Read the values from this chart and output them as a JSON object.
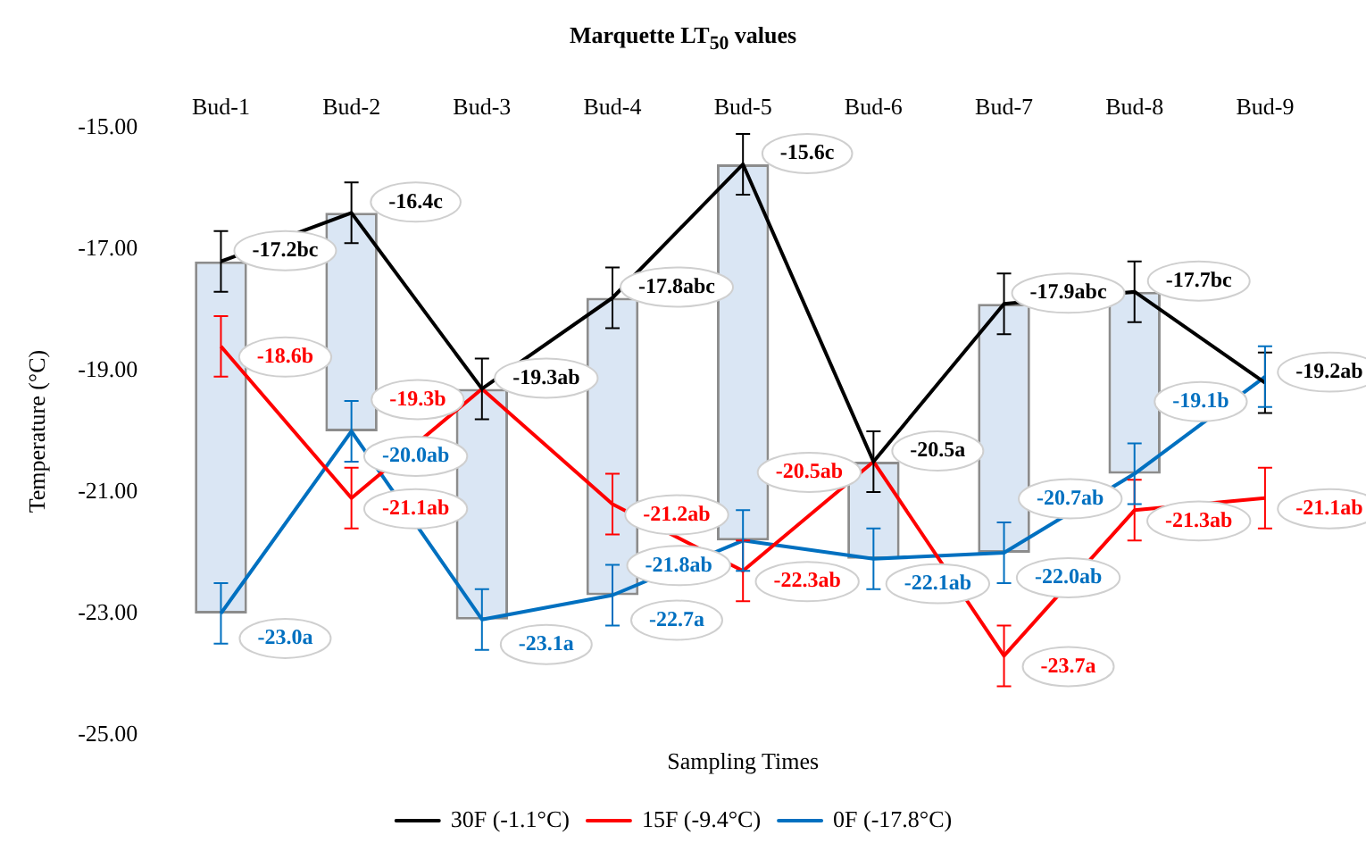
{
  "chart_data": {
    "type": "line",
    "title": "Marquette LT$_{50}$ values",
    "xlabel": "Sampling Times",
    "ylabel": "Temperature (°C)",
    "categories": [
      "Bud-1",
      "Bud-2",
      "Bud-3",
      "Bud-4",
      "Bud-5",
      "Bud-6",
      "Bud-7",
      "Bud-8",
      "Bud-9"
    ],
    "ylim": [
      -25,
      -15
    ],
    "yticks": [
      {
        "value": -15,
        "label": "-15.00"
      },
      {
        "value": -17,
        "label": "-17.00"
      },
      {
        "value": -19,
        "label": "-19.00"
      },
      {
        "value": -21,
        "label": "-21.00"
      },
      {
        "value": -23,
        "label": "-23.00"
      },
      {
        "value": -25,
        "label": "-25.00"
      }
    ],
    "grid": false,
    "legend": "bottom",
    "marker": "none",
    "line_style": "solid",
    "series": [
      {
        "type": "bar",
        "color": "#dae6f4",
        "base": [
          -23.0,
          -20.0,
          -23.1,
          -22.7,
          -21.8,
          -22.1,
          -22.0,
          -20.7,
          null
        ],
        "values": [
          5.8,
          3.6,
          3.8,
          4.9,
          6.2,
          1.6,
          4.1,
          3.0,
          null
        ]
      },
      {
        "name": "30F (-1.1°C)",
        "color": "#000000",
        "values": [
          -17.2,
          -16.4,
          -19.3,
          -17.8,
          -15.6,
          -20.5,
          -17.9,
          -17.7,
          -19.2
        ],
        "errors": [
          0.5,
          0.5,
          0.5,
          0.5,
          0.5,
          0.5,
          0.5,
          0.5,
          0.5
        ],
        "value_labels": [
          "-17.2bc",
          "-16.4c",
          "-19.3ab",
          "-17.8abc",
          "-15.6c",
          "-20.5a",
          "-17.9abc",
          "-17.7bc",
          "-19.2ab"
        ]
      },
      {
        "name": "15F (-9.4°C)",
        "color": "#ff0000",
        "values": [
          -18.6,
          -21.1,
          -19.3,
          -21.2,
          -22.3,
          -20.5,
          -23.7,
          -21.3,
          -21.1
        ],
        "errors": [
          0.5,
          0.5,
          null,
          0.5,
          0.5,
          null,
          0.5,
          0.5,
          0.5
        ],
        "value_labels": [
          "-18.6b",
          "-21.1ab",
          "-19.3b",
          "-21.2ab",
          "-22.3ab",
          "-20.5ab",
          "-23.7a",
          "-21.3ab",
          "-21.1ab"
        ]
      },
      {
        "name": "0F (-17.8°C)",
        "color": "#0070c0",
        "values": [
          -23.0,
          -20.0,
          -23.1,
          -22.7,
          -21.8,
          -22.1,
          -22.0,
          -20.7,
          -19.1
        ],
        "errors": [
          0.5,
          0.5,
          0.5,
          0.5,
          0.5,
          0.5,
          0.5,
          0.5,
          0.5
        ],
        "value_labels": [
          "-23.0a",
          "-20.0ab",
          "-23.1a",
          "-22.7a",
          "-21.8ab",
          "-22.1ab",
          "-22.0ab",
          "-20.7ab",
          "-19.1b"
        ]
      }
    ]
  }
}
